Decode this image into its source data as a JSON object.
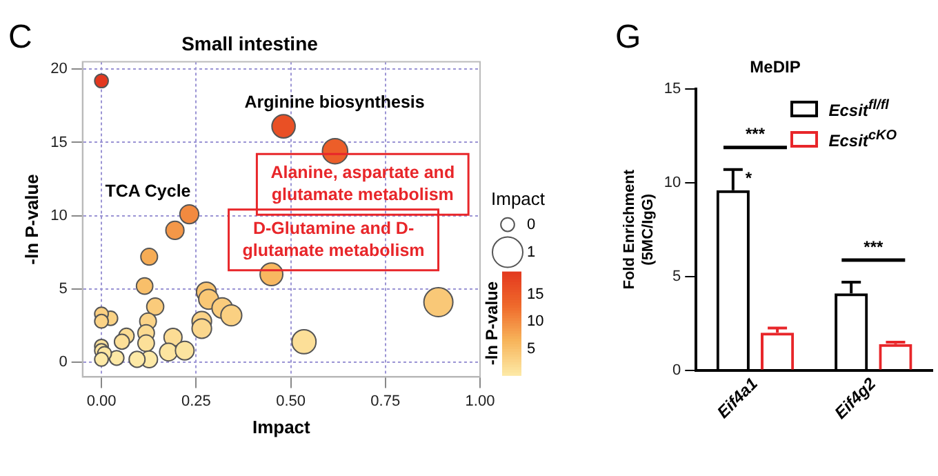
{
  "chart_data": [
    {
      "type": "bubble",
      "title": "Small intestine",
      "xlabel": "Impact",
      "ylabel": "-ln P-value",
      "legend_title": "Impact",
      "clabel": "-ln P-value",
      "x": [
        0,
        0.481,
        0.617,
        0.232,
        0.194,
        0.126,
        0.114,
        0.449,
        0.142,
        0.277,
        0.283,
        0.319,
        0.343,
        0.89,
        0.265,
        0.265,
        0.123,
        0.118,
        0.118,
        0.189,
        0.177,
        0.22,
        0.126,
        0.094,
        0.066,
        0.054,
        0.04,
        0.024,
        0,
        0,
        0,
        0,
        0.008,
        0,
        0.535
      ],
      "values": [
        19.2,
        16.1,
        14.4,
        10.1,
        9.0,
        7.2,
        5.2,
        6.0,
        3.8,
        4.8,
        4.3,
        3.7,
        3.2,
        4.1,
        2.8,
        2.3,
        2.8,
        2.0,
        1.3,
        1.7,
        0.7,
        0.8,
        0.2,
        0.2,
        1.8,
        1.4,
        0.3,
        3.0,
        3.3,
        2.8,
        1.1,
        0.8,
        0.6,
        0.2,
        1.4
      ],
      "sizes": [
        0.2,
        0.585,
        0.694,
        0.386,
        0.355,
        0.301,
        0.291,
        0.559,
        0.314,
        0.422,
        0.426,
        0.455,
        0.474,
        0.912,
        0.412,
        0.412,
        0.298,
        0.294,
        0.294,
        0.351,
        0.342,
        0.376,
        0.301,
        0.275,
        0.253,
        0.243,
        0.232,
        0.219,
        0.2,
        0.2,
        0.2,
        0.2,
        0.206,
        0.2,
        0.628
      ],
      "cvalues": [
        19.2,
        16.1,
        14.4,
        10.1,
        9.0,
        7.2,
        5.2,
        6.0,
        3.8,
        4.8,
        4.3,
        3.7,
        3.2,
        4.1,
        2.8,
        2.3,
        2.8,
        2.0,
        1.3,
        1.7,
        0.7,
        0.8,
        0.2,
        0.2,
        1.8,
        1.4,
        0.3,
        3.0,
        3.3,
        2.8,
        1.1,
        0.8,
        0.6,
        0.2,
        1.4
      ],
      "size_legend": [
        {
          "value": 0.2,
          "label": "0"
        },
        {
          "value": 1,
          "label": "1"
        }
      ],
      "clim": [
        0.2,
        19.2
      ],
      "cticks": [
        5,
        10,
        15
      ],
      "xlim": [
        -0.05,
        1.0
      ],
      "xticks": [
        {
          "value": 0,
          "label": "0.00"
        },
        {
          "value": 0.25,
          "label": "0.25"
        },
        {
          "value": 0.5,
          "label": "0.50"
        },
        {
          "value": 0.75,
          "label": "0.75"
        },
        {
          "value": 1,
          "label": "1.00"
        }
      ],
      "ylim": [
        -1,
        20.5
      ],
      "yticks": [
        0,
        5,
        10,
        15,
        20
      ],
      "grid": true,
      "annotations": [
        "C",
        {
          "text": "Arginine biosynthesis",
          "x": 0.481,
          "y": 16.1
        },
        {
          "text": "Alanine, aspartate and glutamate metabolism",
          "x": 0.617,
          "y": 14.4
        },
        {
          "text": "TCA Cycle",
          "x": 0.232,
          "y": 10.1
        },
        {
          "text": "D-Glutamine and D-glutamate metabolism",
          "x": 0.449,
          "y": 6.0
        }
      ]
    },
    {
      "type": "bar",
      "title": "MeDIP",
      "ylabel": "Fold Enrichment (5MC/IgG)",
      "categories": [
        "Eif4a1",
        "Eif4g2"
      ],
      "series": [
        {
          "name": "Ecsit$^{fl/fl}$",
          "color": "#000000",
          "values": [
            9.6,
            4.1
          ],
          "errors": [
            1.1,
            0.6
          ]
        },
        {
          "name": "Ecsit$^{cKO}$",
          "color": "#e8262a",
          "values": [
            2.0,
            1.4
          ],
          "errors": [
            0.25,
            0.1
          ]
        }
      ],
      "ylim": [
        0,
        15
      ],
      "yticks": [
        0,
        5,
        10,
        15
      ],
      "grid": false,
      "legend": "top right",
      "annotations": [
        "G",
        "***",
        {
          "text": "*",
          "x": "Eif4a1",
          "y": 10.7
        },
        "***"
      ]
    }
  ]
}
